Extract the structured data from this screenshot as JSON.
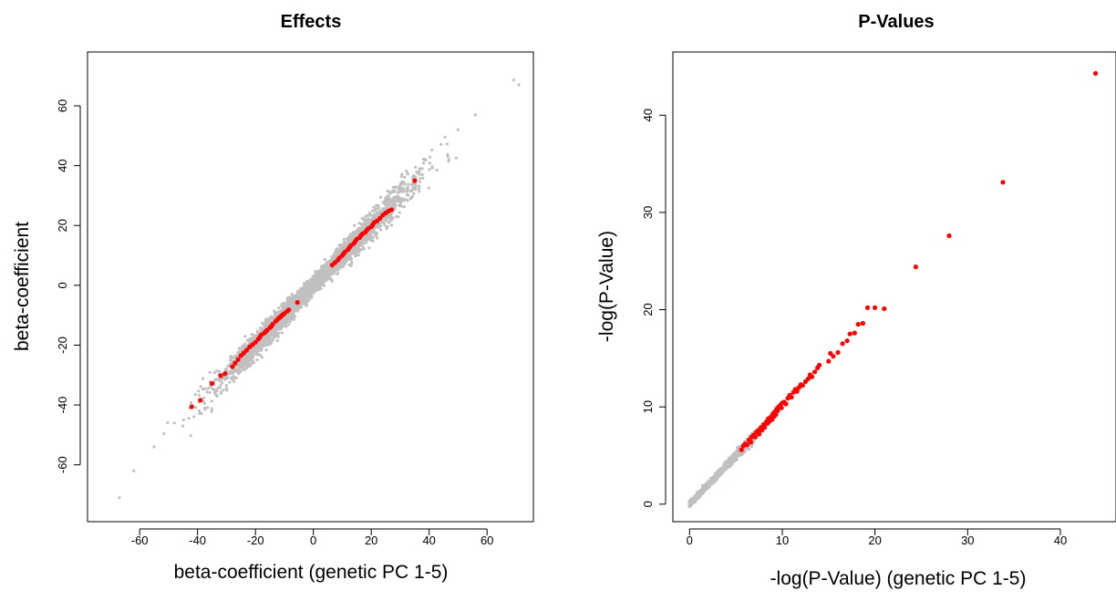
{
  "chart_data": [
    {
      "type": "scatter",
      "title": "Effects",
      "xlabel": "beta-coefficient (genetic PC 1-5)",
      "ylabel": "beta-coefficient",
      "xlim": [
        -78,
        76
      ],
      "ylim": [
        -79,
        78
      ],
      "xticks": [
        -60,
        -40,
        -20,
        0,
        20,
        40,
        60
      ],
      "yticks": [
        -60,
        -40,
        -20,
        0,
        20,
        40,
        60
      ],
      "grid": false,
      "legend": "none",
      "colors": {
        "background_points": "#c0c0c0",
        "highlight_points": "#ff0000"
      },
      "background_cloud": {
        "description_pattern": "dense grey diagonal band along y=x",
        "x_range": [
          -67,
          71
        ],
        "band_halfwidth": 3.5,
        "point_count": 4200,
        "seed": 7
      },
      "series": [
        {
          "values": [
            [
              -42.0,
              -40.6
            ],
            [
              -39.0,
              -38.4
            ],
            [
              -35.0,
              -32.8
            ],
            [
              -32.0,
              -30.2
            ],
            [
              -30.5,
              -29.5
            ],
            [
              -28.0,
              -27.2
            ],
            [
              -27.0,
              -26.0
            ],
            [
              -26.0,
              -24.8
            ],
            [
              -25.0,
              -23.5
            ],
            [
              -24.0,
              -22.6
            ],
            [
              -23.0,
              -21.7
            ],
            [
              -22.0,
              -20.6
            ],
            [
              -21.0,
              -19.8
            ],
            [
              -20.0,
              -19.0
            ],
            [
              -19.0,
              -18.0
            ],
            [
              -18.5,
              -17.4
            ],
            [
              -18.0,
              -16.6
            ],
            [
              -17.0,
              -16.0
            ],
            [
              -16.5,
              -15.5
            ],
            [
              -16.0,
              -15.0
            ],
            [
              -15.0,
              -14.2
            ],
            [
              -14.5,
              -13.7
            ],
            [
              -14.0,
              -13.0
            ],
            [
              -13.0,
              -12.0
            ],
            [
              -12.5,
              -11.6
            ],
            [
              -12.0,
              -11.0
            ],
            [
              -11.5,
              -10.7
            ],
            [
              -11.0,
              -10.2
            ],
            [
              -10.5,
              -9.8
            ],
            [
              -10.0,
              -9.4
            ],
            [
              -9.0,
              -8.6
            ],
            [
              -8.5,
              -8.2
            ],
            [
              -5.5,
              -5.7
            ],
            [
              6.5,
              6.8
            ],
            [
              7.5,
              7.6
            ],
            [
              8.5,
              8.5
            ],
            [
              9.0,
              9.2
            ],
            [
              10.0,
              10.0
            ],
            [
              10.5,
              10.6
            ],
            [
              11.0,
              11.2
            ],
            [
              12.0,
              12.0
            ],
            [
              12.5,
              12.7
            ],
            [
              13.0,
              13.3
            ],
            [
              14.0,
              14.0
            ],
            [
              14.5,
              14.7
            ],
            [
              15.0,
              15.4
            ],
            [
              16.0,
              16.0
            ],
            [
              16.5,
              16.8
            ],
            [
              17.0,
              17.2
            ],
            [
              18.0,
              17.8
            ],
            [
              18.5,
              18.5
            ],
            [
              19.0,
              19.0
            ],
            [
              20.0,
              19.6
            ],
            [
              20.5,
              20.2
            ],
            [
              21.0,
              21.0
            ],
            [
              22.0,
              21.5
            ],
            [
              23.0,
              22.4
            ],
            [
              24.0,
              23.5
            ],
            [
              25.0,
              24.2
            ],
            [
              26.0,
              24.8
            ],
            [
              27.0,
              25.3
            ],
            [
              35.0,
              35.0
            ]
          ]
        }
      ]
    },
    {
      "type": "scatter",
      "title": "P-Values",
      "xlabel": "-log(P-Value) (genetic PC 1-5)",
      "ylabel": "-log(P-Value)",
      "xlim": [
        -1.8,
        46
      ],
      "ylim": [
        -1.8,
        46.5
      ],
      "xticks": [
        0,
        10,
        20,
        30,
        40
      ],
      "yticks": [
        0,
        10,
        20,
        30,
        40
      ],
      "grid": false,
      "legend": "none",
      "colors": {
        "background_points": "#c0c0c0",
        "highlight_points": "#ff0000"
      },
      "background_cloud": {
        "description_pattern": "dense grey band along y=x near origin",
        "x_range": [
          0,
          7
        ],
        "band_halfwidth": 0.35,
        "point_count": 1800,
        "seed": 11
      },
      "series": [
        {
          "values": [
            [
              5.6,
              5.6
            ],
            [
              5.8,
              6.0
            ],
            [
              6.0,
              6.2
            ],
            [
              6.2,
              6.1
            ],
            [
              6.4,
              6.6
            ],
            [
              6.6,
              6.4
            ],
            [
              6.7,
              6.9
            ],
            [
              6.9,
              7.1
            ],
            [
              7.1,
              6.9
            ],
            [
              7.2,
              7.4
            ],
            [
              7.4,
              7.6
            ],
            [
              7.5,
              7.2
            ],
            [
              7.7,
              7.9
            ],
            [
              7.8,
              7.6
            ],
            [
              8.0,
              8.2
            ],
            [
              8.1,
              7.9
            ],
            [
              8.3,
              8.5
            ],
            [
              8.4,
              8.3
            ],
            [
              8.5,
              8.8
            ],
            [
              8.6,
              8.5
            ],
            [
              8.8,
              9.0
            ],
            [
              8.9,
              8.7
            ],
            [
              9.0,
              9.3
            ],
            [
              9.1,
              9.0
            ],
            [
              9.2,
              9.5
            ],
            [
              9.3,
              9.2
            ],
            [
              9.4,
              9.8
            ],
            [
              9.5,
              9.6
            ],
            [
              9.6,
              10.0
            ],
            [
              9.8,
              10.2
            ],
            [
              9.9,
              9.9
            ],
            [
              10.0,
              10.4
            ],
            [
              10.2,
              10.5
            ],
            [
              10.4,
              10.3
            ],
            [
              10.6,
              10.9
            ],
            [
              10.8,
              11.2
            ],
            [
              11.0,
              11.0
            ],
            [
              11.2,
              11.5
            ],
            [
              11.4,
              11.8
            ],
            [
              11.6,
              11.6
            ],
            [
              11.8,
              12.0
            ],
            [
              12.0,
              12.3
            ],
            [
              12.2,
              12.2
            ],
            [
              12.5,
              12.6
            ],
            [
              12.8,
              12.9
            ],
            [
              13.0,
              13.3
            ],
            [
              13.2,
              13.1
            ],
            [
              13.5,
              13.6
            ],
            [
              13.8,
              14.0
            ],
            [
              14.0,
              14.3
            ],
            [
              15.0,
              14.7
            ],
            [
              15.2,
              15.5
            ],
            [
              15.5,
              15.2
            ],
            [
              16.0,
              15.6
            ],
            [
              16.5,
              16.5
            ],
            [
              17.0,
              16.8
            ],
            [
              17.3,
              17.5
            ],
            [
              17.8,
              17.6
            ],
            [
              18.2,
              18.5
            ],
            [
              18.7,
              18.6
            ],
            [
              19.2,
              20.2
            ],
            [
              20.0,
              20.2
            ],
            [
              21.0,
              20.1
            ],
            [
              24.4,
              24.4
            ],
            [
              28.0,
              27.6
            ],
            [
              33.8,
              33.1
            ],
            [
              43.8,
              44.3
            ]
          ]
        }
      ]
    }
  ]
}
